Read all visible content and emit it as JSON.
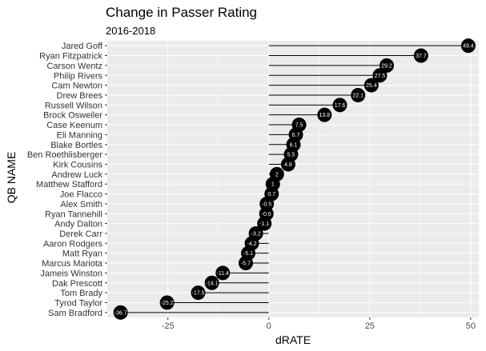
{
  "chart_data": {
    "type": "lollipop",
    "title": "Change in Passer Rating",
    "subtitle": "2016-2018",
    "xlabel": "dRATE",
    "ylabel": "QB NAME",
    "xlim": [
      -40,
      52
    ],
    "xticks": [
      -25,
      0,
      25,
      50
    ],
    "grid": true,
    "categories": [
      "Jared Goff",
      "Ryan Fitzpatrick",
      "Carson Wentz",
      "Philip Rivers",
      "Cam Newton",
      "Drew Brees",
      "Russell Wilson",
      "Brock Osweiler",
      "Case Keenum",
      "Eli Manning",
      "Blake Bortles",
      "Ben Roethlisberger",
      "Kirk Cousins",
      "Andrew Luck",
      "Matthew Stafford",
      "Joe Flacco",
      "Alex Smith",
      "Ryan Tannehill",
      "Andy Dalton",
      "Derek Carr",
      "Aaron Rodgers",
      "Matt Ryan",
      "Marcus Mariota",
      "Jameis Winston",
      "Dak Prescott",
      "Tom Brady",
      "Tyrod Taylor",
      "Sam Bradford"
    ],
    "values": [
      49.4,
      37.7,
      29.2,
      27.5,
      25.4,
      22.1,
      17.6,
      13.8,
      7.5,
      6.7,
      6.1,
      5.5,
      4.8,
      2,
      1,
      0.7,
      -0.5,
      -0.6,
      -1.1,
      -3.2,
      -4.2,
      -5.1,
      -5.7,
      -11.4,
      -14.1,
      -17.5,
      -25.2,
      -36.7
    ],
    "value_labels": [
      "49.4",
      "37.7",
      "29.2",
      "27.5",
      "25.4",
      "22.1",
      "17.6",
      "13.8",
      "7.5",
      "6.7",
      "6.1",
      "5.5",
      "4.8",
      "2",
      "1",
      "0.7",
      "-0.5",
      "-0.6",
      "-1.1",
      "-3.2",
      "-4.2",
      "-5.1",
      "-5.7",
      "-11.4",
      "-14.1",
      "-17.5",
      "-25.2",
      "-36.7"
    ],
    "colors": {
      "panel": "#ebebeb",
      "grid": "#ffffff",
      "point": "#000000",
      "label": "#ffffff"
    }
  }
}
